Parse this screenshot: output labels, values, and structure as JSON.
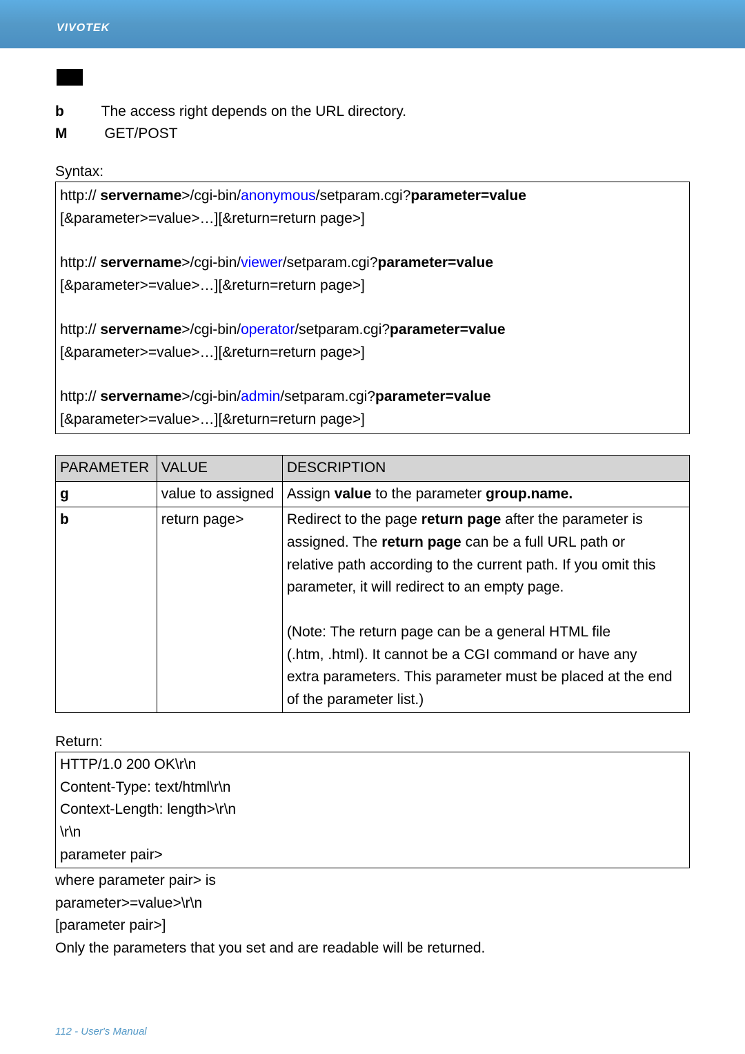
{
  "header": {
    "brand": "VIVOTEK"
  },
  "intro": {
    "line1_marker": "b",
    "line1_text": "The access right depends on the URL directory.",
    "line2_marker": "M",
    "line2_text": "GET/POST"
  },
  "syntax_label": "Syntax:",
  "syntax": {
    "rows": [
      {
        "prefix": "http://   ",
        "server": "servername",
        "mid1": ">/cgi-bin/",
        "role": "anonymous",
        "mid2": "/setparam.cgi?",
        "pv": "parameter=value",
        "line2": "[&parameter>=value>…][&return=return page>]"
      },
      {
        "prefix": "http://   ",
        "server": "servername",
        "mid1": ">/cgi-bin/",
        "role": "viewer",
        "mid2": "/setparam.cgi?",
        "pv": "parameter=value",
        "line2": "[&parameter>=value>…][&return=return page>]"
      },
      {
        "prefix": "http://   ",
        "server": "servername",
        "mid1": ">/cgi-bin/",
        "role": "operator",
        "mid2": "/setparam.cgi?",
        "pv": "parameter=value",
        "line2": "[&parameter>=value>…][&return=return page>]"
      },
      {
        "prefix": "http://   ",
        "server": "servername",
        "mid1": ">/cgi-bin/",
        "role": "admin",
        "mid2": "/setparam.cgi?",
        "pv": "parameter=value",
        "line2": "[&parameter>=value>…][&return=return page>]"
      }
    ]
  },
  "table": {
    "headers": [
      "PARAMETER",
      "VALUE",
      "DESCRIPTION"
    ],
    "rows": [
      {
        "p_marker": "g",
        "p_rest": "",
        "v": "value to assigned",
        "d_pre": "  Assign ",
        "d_b1": "value",
        "d_mid": "    to the parameter ",
        "d_b2": "group.name.",
        "d_post": ""
      },
      {
        "p_marker": "b",
        "p_rest": "",
        "v": "return page>",
        "d1_pre": "Redirect to the page ",
        "d1_b": "return page",
        "d1_post": " after the parameter is",
        "d2_pre": "assigned. The ",
        "d2_b": "return page  ",
        "d2_post": " can be a full URL path or",
        "d3": "relative path according to the current path. If you omit this",
        "d4": "parameter, it will redirect to an empty page.",
        "blank": " ",
        "d5": "(Note: The return page can be a general HTML file",
        "d6": "(.htm, .html). It cannot be a CGI command or have any",
        "d7": "extra parameters. This parameter must be placed at the end",
        "d8": "of the parameter list.)"
      }
    ]
  },
  "return_label": "Return:",
  "return_box": {
    "l1": "HTTP/1.0 200 OK\\r\\n",
    "l2": "Content-Type: text/html\\r\\n",
    "l3": "Context-Length: length>\\r\\n",
    "l4": "\\r\\n",
    "l5": "parameter pair>"
  },
  "after_return": {
    "l1": "where parameter pair> is",
    "l2": "parameter>=value>\\r\\n",
    "l3": "[parameter pair>]",
    "l4_pre": "Only the parameters that you set and ",
    "l4_post": "are readable will be returned."
  },
  "footer": "112 - User's Manual"
}
